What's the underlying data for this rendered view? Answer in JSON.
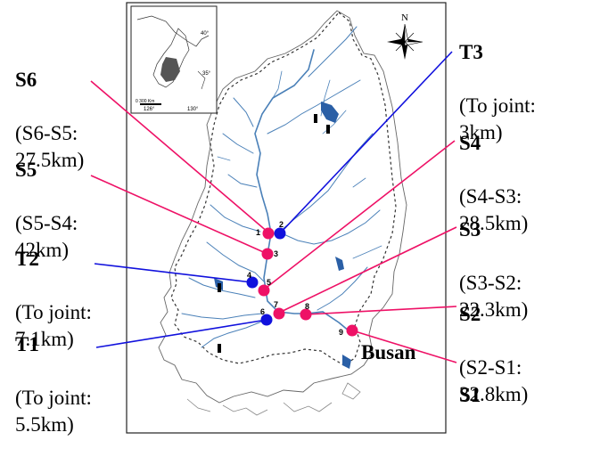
{
  "map": {
    "city_label": "Busan",
    "compass": {
      "letter": "N"
    },
    "inset": {
      "lat_labels": [
        "40°",
        "35°"
      ],
      "lon_labels": [
        "126°",
        "130°"
      ],
      "scale_label": "0    300 Km"
    },
    "colors": {
      "site": "#ee1166",
      "tributary": "#1111dd",
      "river": "#4a80b8",
      "outline": "#555555",
      "watershed": "#333333"
    }
  },
  "stations": [
    {
      "code": "S6",
      "desc": "(S6-S5:\n27.5km)",
      "kind": "site",
      "number": "1"
    },
    {
      "code": "S5",
      "desc": "(S5-S4:\n42km)",
      "kind": "site",
      "number": "3"
    },
    {
      "code": "T2",
      "desc": "(To joint:\n7.1km)",
      "kind": "tributary",
      "number": "4"
    },
    {
      "code": "T1",
      "desc": "(To joint:\n5.5km)",
      "kind": "tributary",
      "number": "6"
    },
    {
      "code": "T3",
      "desc": "(To joint:\n3km)",
      "kind": "tributary",
      "number": "2"
    },
    {
      "code": "S4",
      "desc": "(S4-S3:\n28.5km)",
      "kind": "site",
      "number": "5"
    },
    {
      "code": "S3",
      "desc": "(S3-S2:\n22.3km)",
      "kind": "site",
      "number": "7"
    },
    {
      "code": "S2",
      "desc": "(S2-S1:\n32.8km)",
      "kind": "site",
      "number": "8"
    },
    {
      "code": "S1",
      "desc": "",
      "kind": "site",
      "number": "9"
    }
  ]
}
